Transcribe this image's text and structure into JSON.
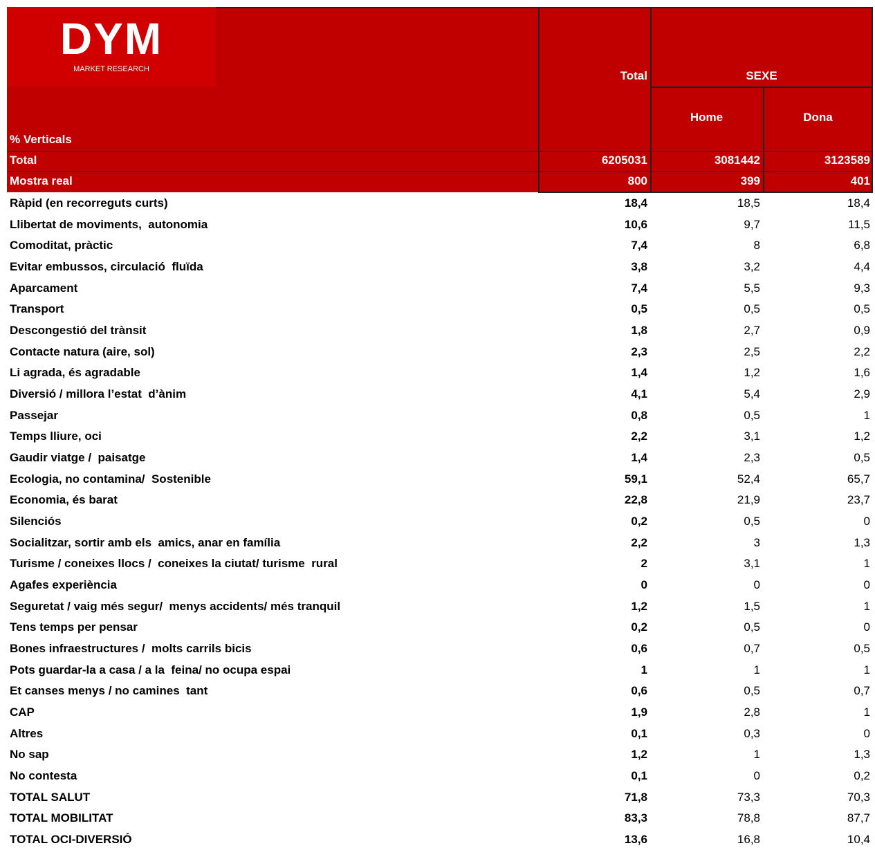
{
  "logo": {
    "name": "DYM",
    "tagline": "MARKET RESEARCH"
  },
  "header": {
    "total": "Total",
    "group": "SEXE",
    "sub": [
      "Home",
      "Dona"
    ],
    "caption": "% Verticals"
  },
  "summary_rows": [
    [
      "Total",
      "6205031",
      "3081442",
      "3123589"
    ],
    [
      "Mostra real",
      "800",
      "399",
      "401"
    ]
  ],
  "rows": [
    [
      "Ràpid (en recorreguts curts)",
      "18,4",
      "18,5",
      "18,4"
    ],
    [
      "Llibertat de moviments,  autonomia",
      "10,6",
      "9,7",
      "11,5"
    ],
    [
      "Comoditat, pràctic",
      "7,4",
      "8",
      "6,8"
    ],
    [
      "Evitar embussos, circulació  fluïda",
      "3,8",
      "3,2",
      "4,4"
    ],
    [
      "Aparcament",
      "7,4",
      "5,5",
      "9,3"
    ],
    [
      "Transport",
      "0,5",
      "0,5",
      "0,5"
    ],
    [
      "Descongestió del trànsit",
      "1,8",
      "2,7",
      "0,9"
    ],
    [
      "Contacte natura (aire, sol)",
      "2,3",
      "2,5",
      "2,2"
    ],
    [
      "Li agrada, és agradable",
      "1,4",
      "1,2",
      "1,6"
    ],
    [
      "Diversió / millora l’estat  d’ànim",
      "4,1",
      "5,4",
      "2,9"
    ],
    [
      "Passejar",
      "0,8",
      "0,5",
      "1"
    ],
    [
      "Temps lliure, oci",
      "2,2",
      "3,1",
      "1,2"
    ],
    [
      "Gaudir viatge /  paisatge",
      "1,4",
      "2,3",
      "0,5"
    ],
    [
      "Ecologia, no contamina/  Sostenible",
      "59,1",
      "52,4",
      "65,7"
    ],
    [
      "Economia, és barat",
      "22,8",
      "21,9",
      "23,7"
    ],
    [
      "Silenciós",
      "0,2",
      "0,5",
      "0"
    ],
    [
      "Socialitzar, sortir amb els  amics, anar en família",
      "2,2",
      "3",
      "1,3"
    ],
    [
      "Turisme / coneixes llocs /  coneixes la ciutat/ turisme  rural",
      "2",
      "3,1",
      "1"
    ],
    [
      "Agafes experiència",
      "0",
      "0",
      "0"
    ],
    [
      "Seguretat / vaig més segur/  menys accidents/ més tranquil",
      "1,2",
      "1,5",
      "1"
    ],
    [
      "Tens temps per pensar",
      "0,2",
      "0,5",
      "0"
    ],
    [
      "Bones infraestructures /  molts carrils bicis",
      "0,6",
      "0,7",
      "0,5"
    ],
    [
      "Pots guardar-la a casa / a la  feina/ no ocupa espai",
      "1",
      "1",
      "1"
    ],
    [
      "Et canses menys / no camines  tant",
      "0,6",
      "0,5",
      "0,7"
    ],
    [
      "CAP",
      "1,9",
      "2,8",
      "1"
    ],
    [
      "Altres",
      "0,1",
      "0,3",
      "0"
    ],
    [
      "No sap",
      "1,2",
      "1",
      "1,3"
    ],
    [
      "No contesta",
      "0,1",
      "0",
      "0,2"
    ],
    [
      "TOTAL SALUT",
      "71,8",
      "73,3",
      "70,3"
    ],
    [
      "TOTAL MOBILITAT",
      "83,3",
      "78,8",
      "87,7"
    ],
    [
      "TOTAL OCI-DIVERSIÓ",
      "13,6",
      "16,8",
      "10,4"
    ]
  ]
}
